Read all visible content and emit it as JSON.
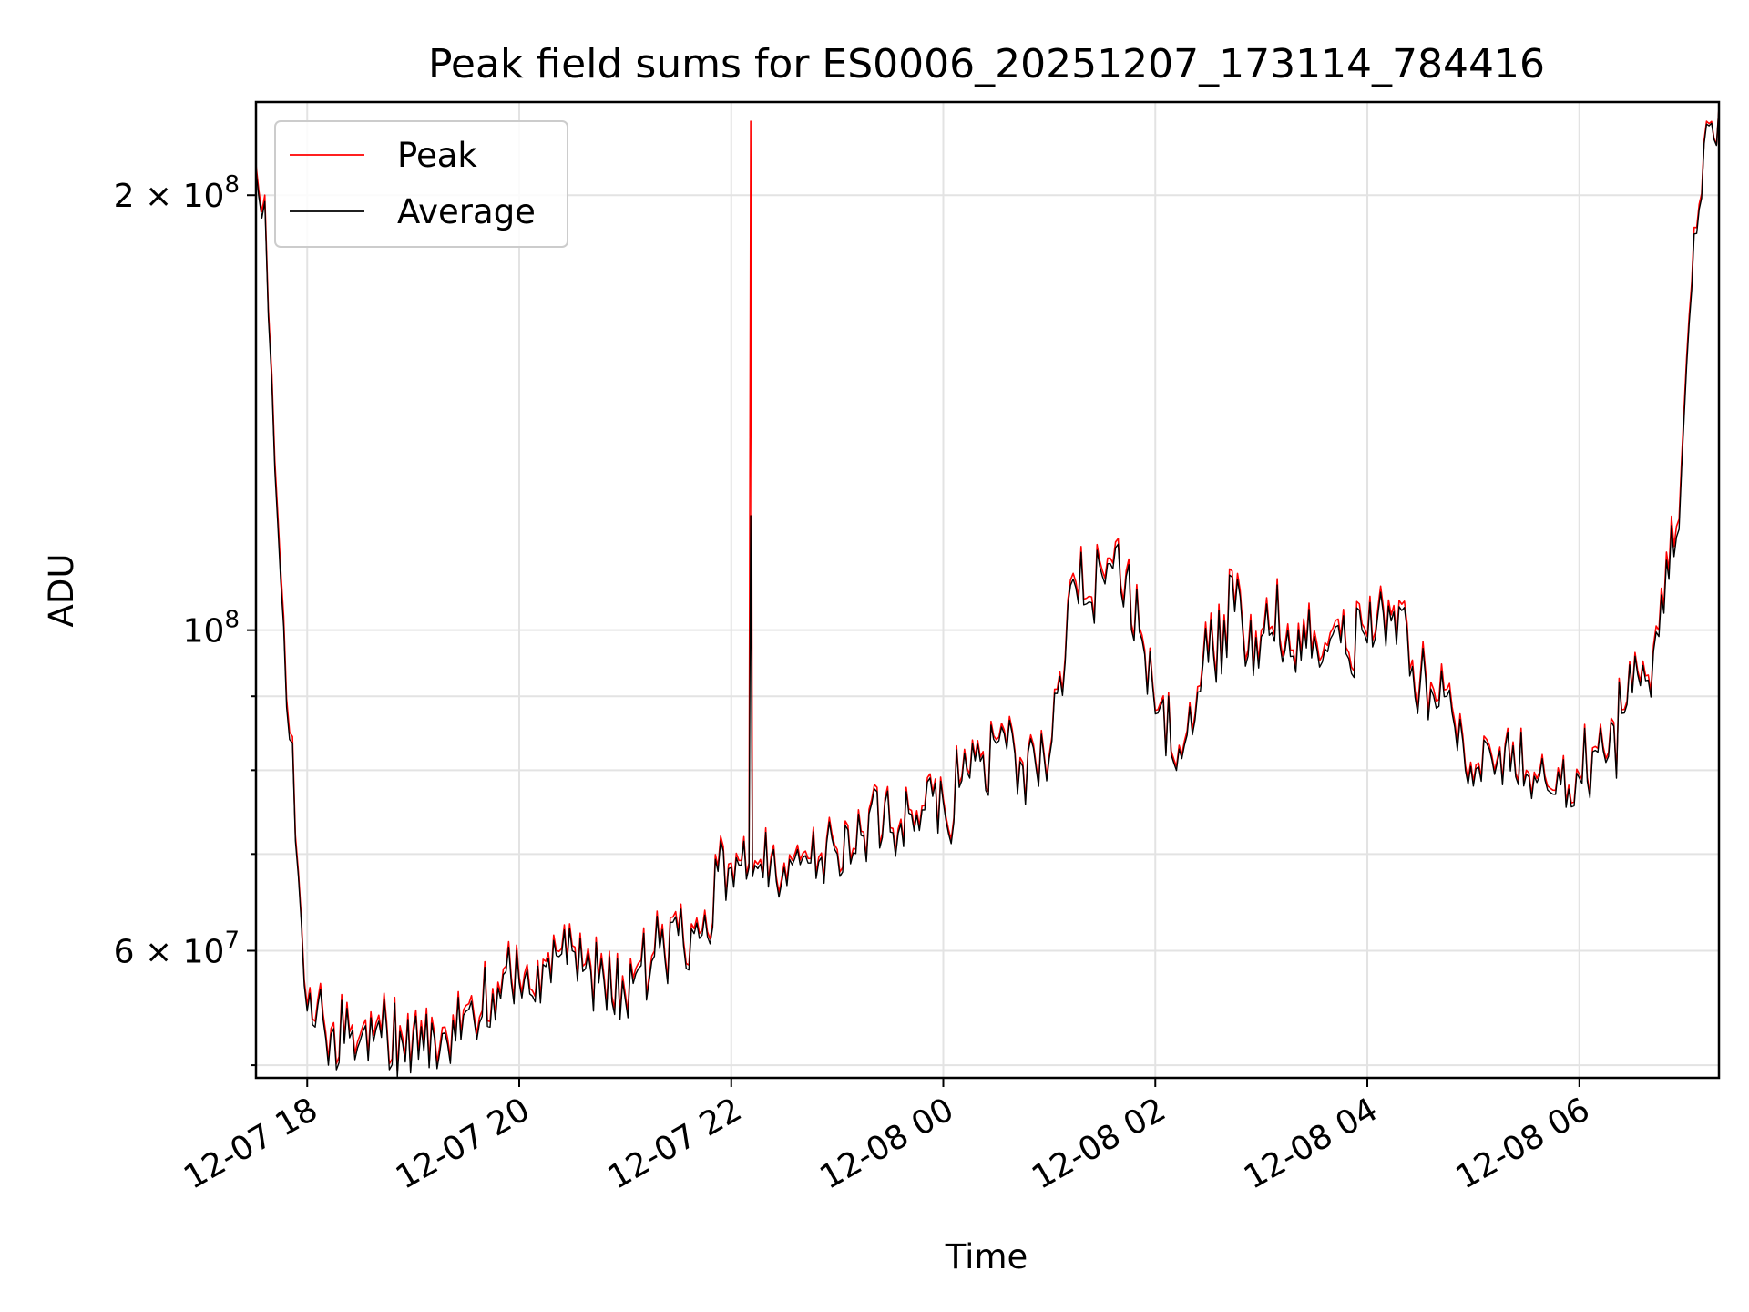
{
  "chart_data": {
    "type": "line",
    "title": "Peak field sums for ES0006_20251207_173114_784416",
    "xlabel": "Time",
    "ylabel": "ADU",
    "xlim": [
      "2025-12-07 17:31",
      "2025-12-08 07:19"
    ],
    "ylim": [
      49000000,
      232000000
    ],
    "yscale": "log",
    "grid": true,
    "legend_position": "upper-left",
    "x_ticks": [
      "12-07 18",
      "12-07 20",
      "12-07 22",
      "12-08 00",
      "12-08 02",
      "12-08 04",
      "12-08 06"
    ],
    "x_tick_values": [
      "2025-12-07 18:00",
      "2025-12-07 20:00",
      "2025-12-07 22:00",
      "2025-12-08 00:00",
      "2025-12-08 02:00",
      "2025-12-08 04:00",
      "2025-12-08 06:00"
    ],
    "y_major_ticks": [
      {
        "value": 200000000,
        "mantissa": "2",
        "exponent": "8"
      },
      {
        "value": 100000000,
        "mantissa": "",
        "exponent": "8"
      },
      {
        "value": 60000000,
        "mantissa": "6",
        "exponent": "7"
      }
    ],
    "y_minor_ticks": [
      50000000,
      70000000,
      80000000,
      90000000
    ],
    "series": [
      {
        "name": "Peak",
        "color": "#ff0000",
        "x": [
          "2025-12-07 17:31",
          "2025-12-07 17:36",
          "2025-12-07 17:40",
          "2025-12-07 17:45",
          "2025-12-07 17:50",
          "2025-12-07 17:55",
          "2025-12-07 18:00",
          "2025-12-07 18:15",
          "2025-12-07 18:30",
          "2025-12-07 18:45",
          "2025-12-07 19:00",
          "2025-12-07 19:15",
          "2025-12-07 19:30",
          "2025-12-07 19:45",
          "2025-12-07 20:00",
          "2025-12-07 20:15",
          "2025-12-07 20:30",
          "2025-12-07 20:45",
          "2025-12-07 21:00",
          "2025-12-07 21:15",
          "2025-12-07 21:30",
          "2025-12-07 21:45",
          "2025-12-07 22:00",
          "2025-12-07 22:10",
          "2025-12-07 22:11",
          "2025-12-07 22:12",
          "2025-12-07 22:30",
          "2025-12-07 22:45",
          "2025-12-07 23:00",
          "2025-12-07 23:15",
          "2025-12-07 23:30",
          "2025-12-07 23:45",
          "2025-12-08 00:00",
          "2025-12-08 00:15",
          "2025-12-08 00:30",
          "2025-12-08 00:45",
          "2025-12-08 01:00",
          "2025-12-08 01:15",
          "2025-12-08 01:30",
          "2025-12-08 01:45",
          "2025-12-08 02:00",
          "2025-12-08 02:15",
          "2025-12-08 02:30",
          "2025-12-08 02:45",
          "2025-12-08 03:00",
          "2025-12-08 03:15",
          "2025-12-08 03:30",
          "2025-12-08 03:45",
          "2025-12-08 04:00",
          "2025-12-08 04:15",
          "2025-12-08 04:30",
          "2025-12-08 04:45",
          "2025-12-08 05:00",
          "2025-12-08 05:15",
          "2025-12-08 05:30",
          "2025-12-08 05:45",
          "2025-12-08 06:00",
          "2025-12-08 06:15",
          "2025-12-08 06:30",
          "2025-12-08 06:45",
          "2025-12-08 06:55",
          "2025-12-08 07:05",
          "2025-12-08 07:12",
          "2025-12-08 07:19"
        ],
        "values": [
          210000000,
          200000000,
          150000000,
          110000000,
          85000000,
          68000000,
          55000000,
          53500000,
          52500000,
          53500000,
          53000000,
          51500000,
          55000000,
          56500000,
          57500000,
          59000000,
          60500000,
          57500000,
          56000000,
          59500000,
          62000000,
          64000000,
          69000000,
          69000000,
          225000000,
          68000000,
          69000000,
          69500000,
          70500000,
          72500000,
          73000000,
          75000000,
          76500000,
          79500000,
          84000000,
          81000000,
          82000000,
          108000000,
          110000000,
          112000000,
          88000000,
          82000000,
          96000000,
          104000000,
          100000000,
          101000000,
          100000000,
          99000000,
          99000000,
          104000000,
          93000000,
          91000000,
          78500000,
          83000000,
          80000000,
          77500000,
          79500000,
          81500000,
          91000000,
          100000000,
          118000000,
          190000000,
          225000000,
          230000000
        ]
      },
      {
        "name": "Average",
        "color": "#000000",
        "x": [
          "2025-12-07 17:31",
          "2025-12-07 17:36",
          "2025-12-07 17:40",
          "2025-12-07 17:45",
          "2025-12-07 17:50",
          "2025-12-07 17:55",
          "2025-12-07 18:00",
          "2025-12-07 18:15",
          "2025-12-07 18:30",
          "2025-12-07 18:45",
          "2025-12-07 19:00",
          "2025-12-07 19:15",
          "2025-12-07 19:30",
          "2025-12-07 19:45",
          "2025-12-07 20:00",
          "2025-12-07 20:15",
          "2025-12-07 20:30",
          "2025-12-07 20:45",
          "2025-12-07 21:00",
          "2025-12-07 21:15",
          "2025-12-07 21:30",
          "2025-12-07 21:45",
          "2025-12-07 22:00",
          "2025-12-07 22:10",
          "2025-12-07 22:11",
          "2025-12-07 22:12",
          "2025-12-07 22:30",
          "2025-12-07 22:45",
          "2025-12-07 23:00",
          "2025-12-07 23:15",
          "2025-12-07 23:30",
          "2025-12-07 23:45",
          "2025-12-08 00:00",
          "2025-12-08 00:15",
          "2025-12-08 00:30",
          "2025-12-08 00:45",
          "2025-12-08 01:00",
          "2025-12-08 01:15",
          "2025-12-08 01:30",
          "2025-12-08 01:45",
          "2025-12-08 02:00",
          "2025-12-08 02:15",
          "2025-12-08 02:30",
          "2025-12-08 02:45",
          "2025-12-08 03:00",
          "2025-12-08 03:15",
          "2025-12-08 03:30",
          "2025-12-08 03:45",
          "2025-12-08 04:00",
          "2025-12-08 04:15",
          "2025-12-08 04:30",
          "2025-12-08 04:45",
          "2025-12-08 05:00",
          "2025-12-08 05:15",
          "2025-12-08 05:30",
          "2025-12-08 05:45",
          "2025-12-08 06:00",
          "2025-12-08 06:15",
          "2025-12-08 06:30",
          "2025-12-08 06:45",
          "2025-12-08 06:55",
          "2025-12-08 07:05",
          "2025-12-08 07:12",
          "2025-12-08 07:19"
        ],
        "values": [
          208000000,
          198000000,
          148000000,
          108000000,
          84000000,
          67500000,
          54500000,
          53000000,
          52000000,
          53000000,
          52500000,
          51000000,
          54500000,
          56000000,
          57000000,
          58500000,
          60000000,
          57000000,
          55500000,
          59000000,
          61500000,
          63500000,
          68500000,
          68500000,
          120000000,
          67500000,
          68500000,
          69000000,
          70000000,
          72000000,
          72500000,
          74500000,
          76000000,
          79000000,
          83500000,
          80500000,
          81500000,
          107000000,
          109000000,
          111000000,
          87500000,
          81500000,
          95000000,
          103000000,
          99000000,
          100000000,
          99000000,
          98000000,
          98000000,
          103000000,
          92000000,
          90000000,
          78000000,
          82500000,
          79500000,
          77000000,
          79000000,
          81000000,
          90500000,
          99000000,
          116000000,
          188000000,
          224000000,
          230000000
        ]
      }
    ]
  }
}
